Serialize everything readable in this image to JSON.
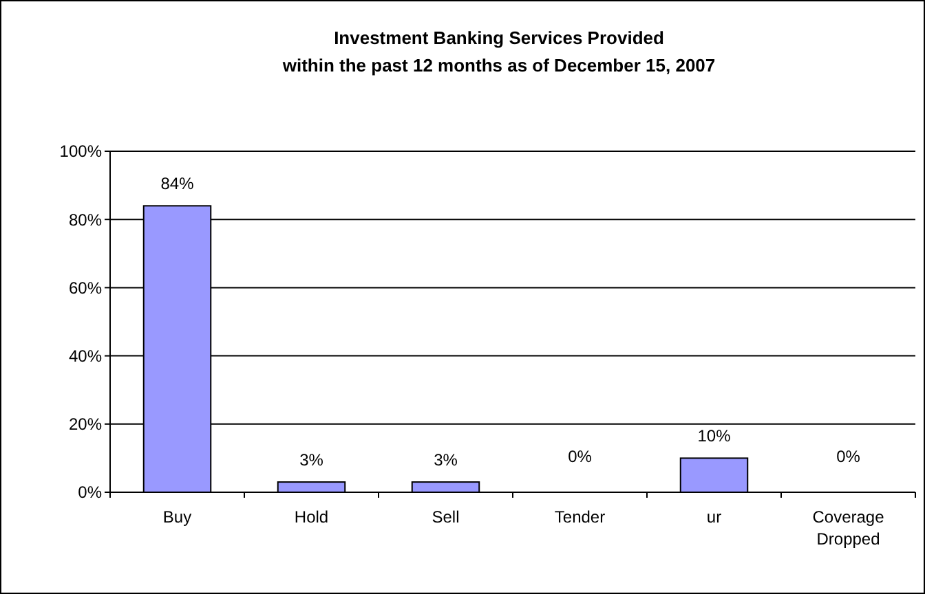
{
  "chart_data": {
    "type": "bar",
    "title": "Investment Banking Services Provided\nwithin the past 12 months as of December 15, 2007",
    "categories": [
      "Buy",
      "Hold",
      "Sell",
      "Tender",
      "ur",
      "Coverage Dropped"
    ],
    "values": [
      84,
      3,
      3,
      0,
      10,
      0
    ],
    "value_labels": [
      "84%",
      "3%",
      "3%",
      "0%",
      "10%",
      "0%"
    ],
    "color": "#9999ff",
    "ylim": [
      0,
      100
    ],
    "yticks": [
      {
        "value": 0,
        "label": "0%"
      },
      {
        "value": 20,
        "label": "20%"
      },
      {
        "value": 40,
        "label": "40%"
      },
      {
        "value": 60,
        "label": "60%"
      },
      {
        "value": 80,
        "label": "80%"
      },
      {
        "value": 100,
        "label": "100%"
      }
    ],
    "grid": "y"
  }
}
